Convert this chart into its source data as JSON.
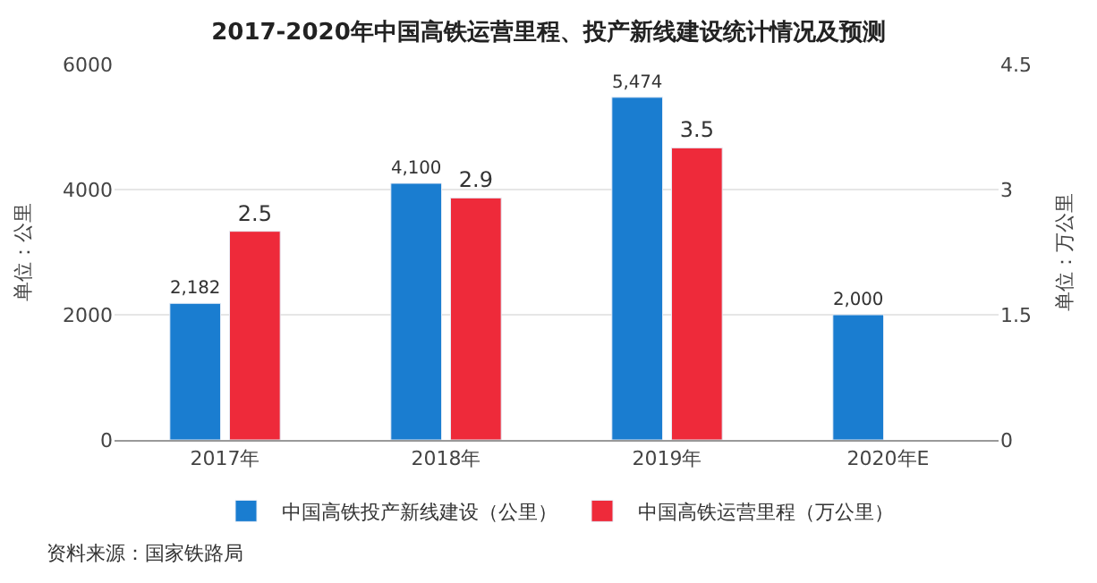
{
  "chart_data": {
    "type": "bar",
    "title": "2017-2020年中国高铁运营里程、投产新线建设统计情况及预测",
    "categories": [
      "2017年",
      "2018年",
      "2019年",
      "2020年E"
    ],
    "series": [
      {
        "name": "中国高铁投产新线建设（公里）",
        "color": "#1a7dd0",
        "values": [
          2182,
          4100,
          5474,
          2000
        ],
        "value_labels": [
          "2,182",
          "4,100",
          "5,474",
          "2,000"
        ]
      },
      {
        "name": "中国高铁运营里程（万公里）",
        "color": "#ee2a3a",
        "values": [
          2.5,
          2.9,
          3.5,
          null
        ],
        "value_labels": [
          "2.5",
          "2.9",
          "3.5",
          null
        ],
        "axis": "y2"
      }
    ],
    "ylabel": "单位：公里",
    "y2label": "单位：万公里",
    "ylim": [
      0,
      6000
    ],
    "yticks": [
      0,
      2000,
      4000,
      6000
    ],
    "y2lim": [
      0,
      4.5
    ],
    "y2ticks": [
      0,
      1.5,
      3,
      4.5
    ],
    "grid": "y",
    "legend": "bottom",
    "annotations": [
      "资料来源：国家铁路局"
    ]
  }
}
